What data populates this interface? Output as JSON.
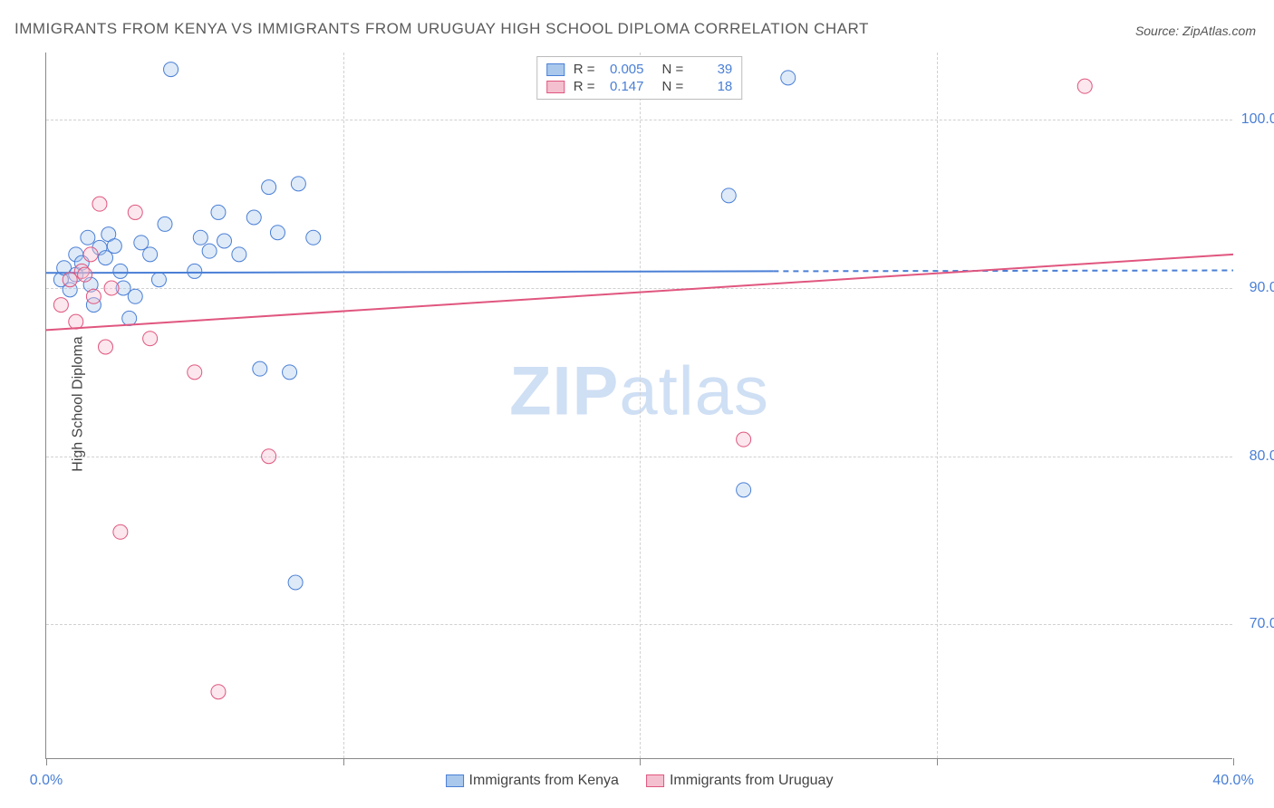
{
  "title": "IMMIGRANTS FROM KENYA VS IMMIGRANTS FROM URUGUAY HIGH SCHOOL DIPLOMA CORRELATION CHART",
  "source": "Source: ZipAtlas.com",
  "watermark_bold": "ZIP",
  "watermark_light": "atlas",
  "y_axis": {
    "label": "High School Diploma"
  },
  "chart": {
    "type": "scatter",
    "background_color": "#ffffff",
    "grid_color": "#d0d0d0",
    "axis_color": "#888888",
    "xlim": [
      0,
      40
    ],
    "ylim": [
      62,
      104
    ],
    "x_ticks": [
      0,
      10,
      20,
      30,
      40
    ],
    "x_tick_labels": [
      "0.0%",
      "",
      "",
      "",
      "40.0%"
    ],
    "x_grid": [
      10,
      20,
      30
    ],
    "y_ticks": [
      70,
      80,
      90,
      100
    ],
    "y_tick_labels": [
      "70.0%",
      "80.0%",
      "90.0%",
      "100.0%"
    ],
    "marker_radius": 8,
    "marker_opacity": 0.38,
    "line_width": 2,
    "series": [
      {
        "name": "Immigrants from Kenya",
        "color_fill": "#a9c8ec",
        "color_stroke": "#4a7fd6",
        "R": "0.005",
        "N": "39",
        "points": [
          [
            0.5,
            90.5
          ],
          [
            0.6,
            91.2
          ],
          [
            0.8,
            89.9
          ],
          [
            1.0,
            92.0
          ],
          [
            1.0,
            90.8
          ],
          [
            1.2,
            91.5
          ],
          [
            1.4,
            93.0
          ],
          [
            1.5,
            90.2
          ],
          [
            1.6,
            89.0
          ],
          [
            1.8,
            92.4
          ],
          [
            2.0,
            91.8
          ],
          [
            2.1,
            93.2
          ],
          [
            2.3,
            92.5
          ],
          [
            2.5,
            91.0
          ],
          [
            2.6,
            90.0
          ],
          [
            2.8,
            88.2
          ],
          [
            3.0,
            89.5
          ],
          [
            3.2,
            92.7
          ],
          [
            3.5,
            92.0
          ],
          [
            3.8,
            90.5
          ],
          [
            4.0,
            93.8
          ],
          [
            4.2,
            103.0
          ],
          [
            5.0,
            91.0
          ],
          [
            5.2,
            93.0
          ],
          [
            5.5,
            92.2
          ],
          [
            5.8,
            94.5
          ],
          [
            6.0,
            92.8
          ],
          [
            6.5,
            92.0
          ],
          [
            7.0,
            94.2
          ],
          [
            7.2,
            85.2
          ],
          [
            7.5,
            96.0
          ],
          [
            7.8,
            93.3
          ],
          [
            8.2,
            85.0
          ],
          [
            8.4,
            72.5
          ],
          [
            8.5,
            96.2
          ],
          [
            9.0,
            93.0
          ],
          [
            23.0,
            95.5
          ],
          [
            23.5,
            78.0
          ],
          [
            25.0,
            102.5
          ]
        ],
        "trend": {
          "x1": 0,
          "y1": 90.9,
          "x2": 24.5,
          "y2": 91.0,
          "dash_to_x": 40,
          "dash_to_y": 91.05
        }
      },
      {
        "name": "Immigrants from Uruguay",
        "color_fill": "#f4c0cf",
        "color_stroke": "#e0567f",
        "R": "0.147",
        "N": "18",
        "points": [
          [
            0.5,
            89.0
          ],
          [
            0.8,
            90.5
          ],
          [
            1.0,
            88.0
          ],
          [
            1.2,
            91.0
          ],
          [
            1.5,
            92.0
          ],
          [
            1.6,
            89.5
          ],
          [
            1.8,
            95.0
          ],
          [
            2.0,
            86.5
          ],
          [
            2.2,
            90.0
          ],
          [
            2.5,
            75.5
          ],
          [
            3.0,
            94.5
          ],
          [
            3.5,
            87.0
          ],
          [
            5.0,
            85.0
          ],
          [
            5.8,
            66.0
          ],
          [
            7.5,
            80.0
          ],
          [
            23.5,
            81.0
          ],
          [
            35.0,
            102.0
          ],
          [
            1.3,
            90.8
          ]
        ],
        "trend": {
          "x1": 0,
          "y1": 87.5,
          "x2": 40,
          "y2": 92.0
        }
      }
    ]
  },
  "legend_top": [
    {
      "series": 0,
      "r_label": "R =",
      "n_label": "N ="
    },
    {
      "series": 1,
      "r_label": "R =",
      "n_label": "N ="
    }
  ]
}
